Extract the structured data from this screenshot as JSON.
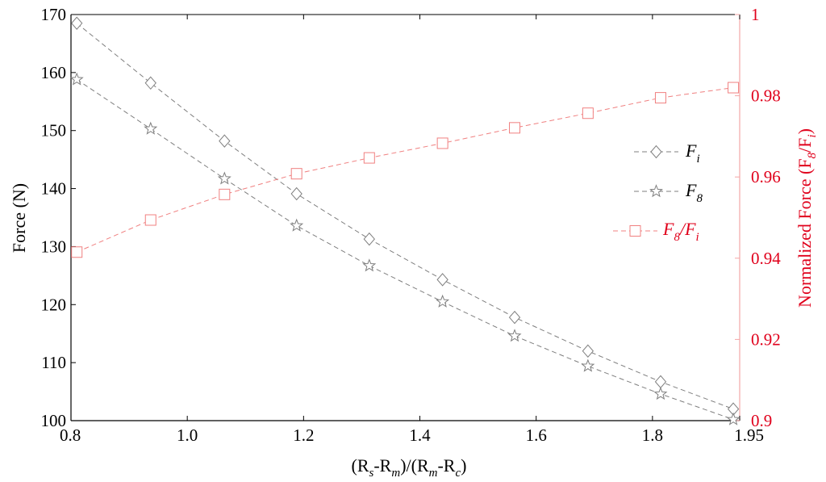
{
  "chart_data": {
    "type": "line",
    "title": "",
    "x": [
      0.81,
      0.937,
      1.064,
      1.188,
      1.313,
      1.439,
      1.563,
      1.689,
      1.814,
      1.939
    ],
    "xlim": [
      0.8,
      1.95
    ],
    "x_ticks": [
      "0.8",
      "1.0",
      "1.2",
      "1.4",
      "1.6",
      "1.8",
      "1.95"
    ],
    "x_tick_values": [
      0.8,
      1.0,
      1.2,
      1.4,
      1.6,
      1.8,
      1.95
    ],
    "xlabel": {
      "p1": "(R",
      "s1": "s",
      "p2": "-R",
      "s2": "m",
      "p3": ")/(R",
      "s3": "m",
      "p4": "-R",
      "s4": "c",
      "p5": ")"
    },
    "ylabel_left": "Force (N)",
    "ylim_left": [
      100,
      170
    ],
    "y_ticks_left": [
      "100",
      "110",
      "120",
      "130",
      "140",
      "150",
      "160",
      "170"
    ],
    "y_tick_values_left": [
      100,
      110,
      120,
      130,
      140,
      150,
      160,
      170
    ],
    "ylabel_right": {
      "p1": "Normalized Force (F",
      "s1": "8",
      "p2": "/F",
      "s2": "i",
      "p3": ")"
    },
    "ylim_right": [
      0.9,
      1.0
    ],
    "y_ticks_right": [
      "0.9",
      "0.92",
      "0.94",
      "0.96",
      "0.98",
      "1"
    ],
    "y_tick_values_right": [
      0.9,
      0.92,
      0.94,
      0.96,
      0.98,
      1.0
    ],
    "grid": false,
    "legend_position": "center-right",
    "series": [
      {
        "legend": {
          "base": "F",
          "sub": "i"
        },
        "axis": "left",
        "marker": "diamond",
        "color": "#7f7f7f",
        "values": [
          168.5,
          158.2,
          148.2,
          139.1,
          131.3,
          124.3,
          117.8,
          112.0,
          106.7,
          102.0
        ]
      },
      {
        "legend": {
          "base": "F",
          "sub": "8"
        },
        "axis": "left",
        "marker": "star",
        "color": "#7f7f7f",
        "values": [
          158.8,
          150.3,
          141.7,
          133.6,
          126.7,
          120.5,
          114.6,
          109.4,
          104.6,
          100.2
        ]
      },
      {
        "legend": {
          "base": "F",
          "sub": "8",
          "mid": "/F",
          "sub2": "i"
        },
        "axis": "right",
        "marker": "square",
        "color": "#f08080",
        "values": [
          0.9415,
          0.9494,
          0.9557,
          0.9608,
          0.9647,
          0.9683,
          0.9721,
          0.9757,
          0.9795,
          0.982
        ]
      }
    ],
    "colors": {
      "axis_left": "#000000",
      "axis_right": "#e0001b",
      "right_axis_line": "#f4a6a6"
    }
  }
}
